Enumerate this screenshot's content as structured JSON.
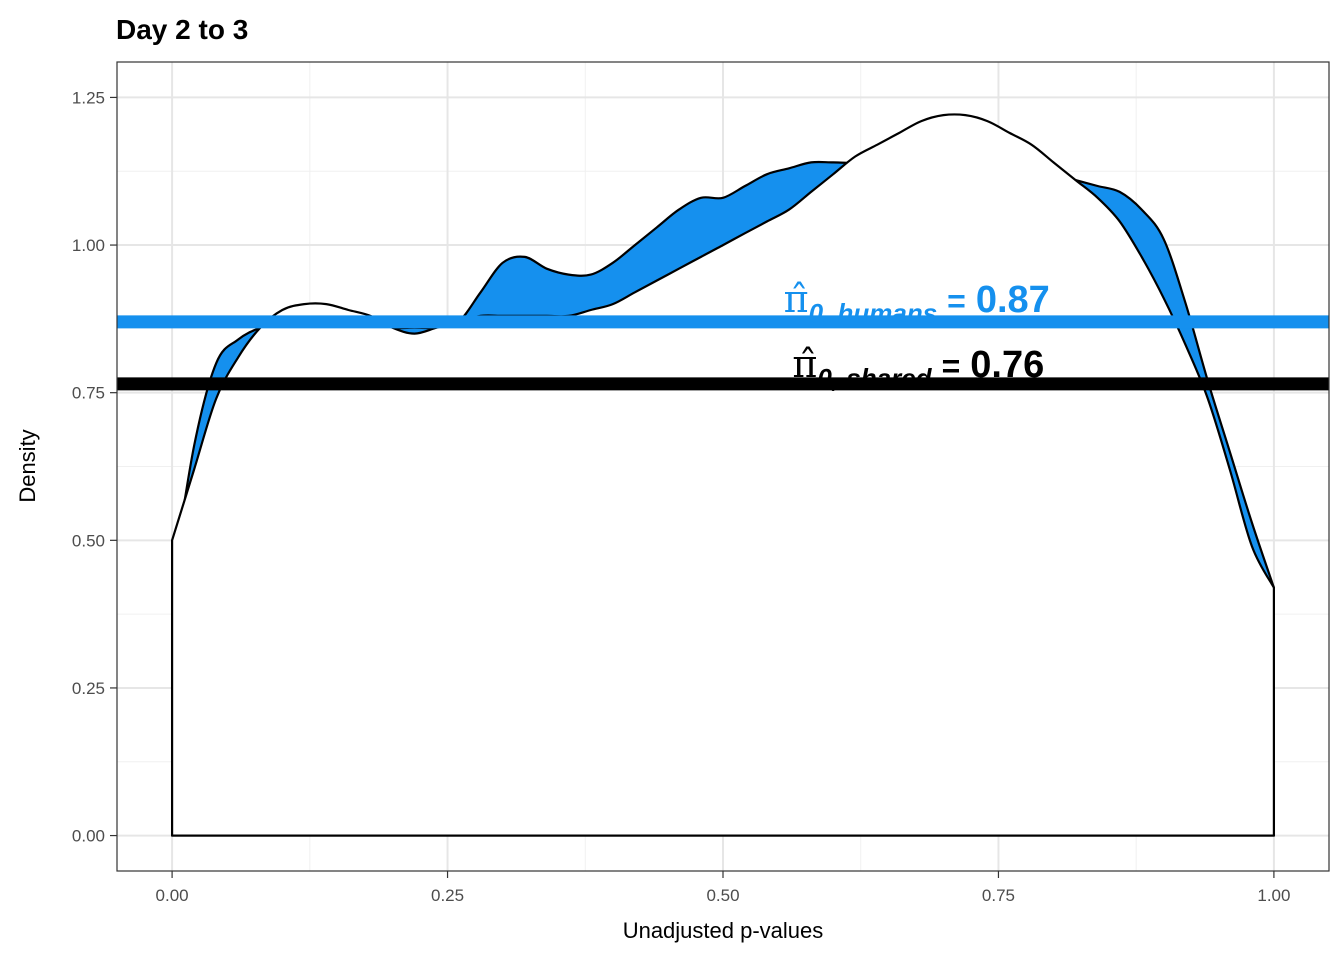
{
  "chart_data": {
    "type": "area",
    "title": "Day 2 to 3",
    "xlabel": "Unadjusted p-values",
    "ylabel": "Density",
    "xlim": [
      -0.05,
      1.05
    ],
    "ylim": [
      -0.06,
      1.31
    ],
    "x_ticks": [
      0.0,
      0.25,
      0.5,
      0.75,
      1.0
    ],
    "x_tick_labels": [
      "0.00",
      "0.25",
      "0.50",
      "0.75",
      "1.00"
    ],
    "y_ticks": [
      0.0,
      0.25,
      0.5,
      0.75,
      1.0,
      1.25
    ],
    "y_tick_labels": [
      "0.00",
      "0.25",
      "0.50",
      "0.75",
      "1.00",
      "1.25"
    ],
    "grid": true,
    "series": [
      {
        "color": "#1590ee",
        "x": [
          0.0,
          0.02,
          0.04,
          0.06,
          0.08,
          0.1,
          0.12,
          0.14,
          0.16,
          0.18,
          0.2,
          0.22,
          0.24,
          0.26,
          0.28,
          0.3,
          0.32,
          0.34,
          0.36,
          0.38,
          0.4,
          0.42,
          0.44,
          0.46,
          0.48,
          0.5,
          0.52,
          0.54,
          0.56,
          0.58,
          0.6,
          0.62,
          0.64,
          0.66,
          0.68,
          0.7,
          0.72,
          0.74,
          0.76,
          0.78,
          0.8,
          0.82,
          0.84,
          0.86,
          0.88,
          0.9,
          0.92,
          0.94,
          0.96,
          0.98,
          1.0
        ],
        "y": [
          0.43,
          0.66,
          0.8,
          0.84,
          0.86,
          0.87,
          0.87,
          0.87,
          0.87,
          0.87,
          0.86,
          0.86,
          0.86,
          0.87,
          0.92,
          0.97,
          0.98,
          0.96,
          0.95,
          0.95,
          0.97,
          1.0,
          1.03,
          1.06,
          1.08,
          1.08,
          1.1,
          1.12,
          1.13,
          1.14,
          1.14,
          1.14,
          1.15,
          1.17,
          1.19,
          1.21,
          1.21,
          1.2,
          1.17,
          1.14,
          1.12,
          1.11,
          1.1,
          1.09,
          1.06,
          1.01,
          0.9,
          0.77,
          0.65,
          0.53,
          0.42
        ]
      },
      {
        "color": "#ffffff",
        "x": [
          0.0,
          0.02,
          0.04,
          0.06,
          0.08,
          0.1,
          0.12,
          0.14,
          0.16,
          0.18,
          0.2,
          0.22,
          0.24,
          0.26,
          0.28,
          0.3,
          0.32,
          0.34,
          0.36,
          0.38,
          0.4,
          0.42,
          0.44,
          0.46,
          0.48,
          0.5,
          0.52,
          0.54,
          0.56,
          0.58,
          0.6,
          0.62,
          0.64,
          0.66,
          0.68,
          0.7,
          0.72,
          0.74,
          0.76,
          0.78,
          0.8,
          0.82,
          0.84,
          0.86,
          0.88,
          0.9,
          0.92,
          0.94,
          0.96,
          0.98,
          1.0
        ],
        "y": [
          0.5,
          0.62,
          0.74,
          0.81,
          0.86,
          0.89,
          0.9,
          0.9,
          0.89,
          0.88,
          0.86,
          0.85,
          0.86,
          0.87,
          0.88,
          0.88,
          0.88,
          0.88,
          0.88,
          0.89,
          0.9,
          0.92,
          0.94,
          0.96,
          0.98,
          1.0,
          1.02,
          1.04,
          1.06,
          1.09,
          1.12,
          1.15,
          1.17,
          1.19,
          1.21,
          1.22,
          1.22,
          1.21,
          1.19,
          1.17,
          1.14,
          1.11,
          1.08,
          1.04,
          0.98,
          0.91,
          0.83,
          0.74,
          0.62,
          0.49,
          0.42
        ]
      }
    ],
    "hlines": [
      {
        "y": 0.87,
        "color": "#1590ee"
      },
      {
        "y": 0.765,
        "color": "#000000"
      }
    ],
    "annotations": [
      {
        "x": 0.555,
        "y": 0.87,
        "symbol": "π̂",
        "subscript": "0, humans",
        "equals": "=",
        "value": "0.87",
        "color": "#1590ee"
      },
      {
        "x": 0.563,
        "y": 0.76,
        "symbol": "π̂",
        "subscript": "0, shared",
        "equals": "=",
        "value": "0.76",
        "color": "#000000"
      }
    ]
  }
}
